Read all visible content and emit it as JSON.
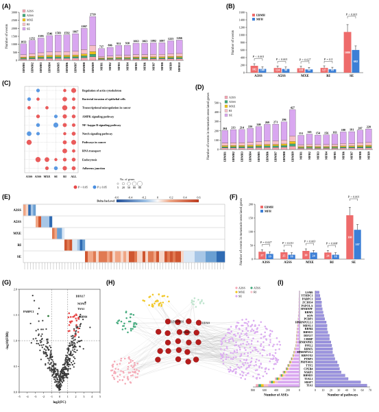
{
  "panels": {
    "a": "(A)",
    "b": "(B)",
    "c": "(C)",
    "d": "(D)",
    "e": "(E)",
    "f": "(F)",
    "g": "(G)",
    "h": "(H)",
    "i": "(I)"
  },
  "colors": {
    "a3ss": "#f4a6b3",
    "a5ss": "#3fa87a",
    "mxe": "#f0c419",
    "ri": "#f7bfc8",
    "se": "#d9a7f0",
    "ebmh": "#ee6b6b",
    "mfh": "#3c7fd6",
    "red": "#e84a4a",
    "blue": "#4a8fe0"
  },
  "legend5": [
    {
      "key": "A3SS",
      "color": "#f4a6b3"
    },
    {
      "key": "A5SS",
      "color": "#3fa87a"
    },
    {
      "key": "MXE",
      "color": "#f0c419"
    },
    {
      "key": "RI",
      "color": "#f7bfc8"
    },
    {
      "key": "SE",
      "color": "#d9a7f0"
    }
  ],
  "chart_a": {
    "type": "bar",
    "ylabel": "Number of events",
    "yticks": [
      "0",
      "500",
      "1000",
      "1500",
      "2000",
      "2500",
      "3000"
    ],
    "ymax": 3000,
    "categories": [
      "EBMH1",
      "EBMH2",
      "EBMH3",
      "EBMH4",
      "EBMH5",
      "EBMH6",
      "EBMH7",
      "EBMH8",
      "EBMH9",
      "MFH1",
      "MFH2",
      "MFH3",
      "MFH4",
      "MFH5",
      "MFH6",
      "MFH7",
      "MFH8",
      "MFH9",
      "MFH10"
    ],
    "totals": [
      1033,
      1252,
      1393,
      1546,
      1583,
      1592,
      1667,
      1997,
      2739,
      737,
      806,
      931,
      938,
      1063,
      1063,
      1092,
      1097,
      1223,
      1266
    ],
    "labels": [
      "1033",
      "1252",
      "1393",
      "1546",
      "1583",
      "1592",
      "1667",
      "1997",
      "2739",
      "737",
      "806",
      "931",
      "938",
      "1063",
      "1063",
      "1092",
      "1097",
      "1223",
      "1266"
    ]
  },
  "chart_b": {
    "type": "bar",
    "ylabel": "Number of events",
    "yticks": [
      "0",
      "200",
      "400",
      "600",
      "800",
      "1000",
      "1200",
      "1400",
      "1600"
    ],
    "ymax": 1600,
    "categories": [
      "A3SS",
      "A5SS",
      "MXE",
      "RI",
      "SE"
    ],
    "legend": [
      "EBMH",
      "MFH"
    ],
    "ebmh": [
      182,
      124,
      118,
      127,
      1080
    ],
    "mfh": [
      100,
      98,
      86,
      89,
      602
    ],
    "ebmh_labels": [
      "182",
      "124",
      "118",
      "127",
      "1080"
    ],
    "mfh_labels": [
      "100",
      "98",
      "86",
      "89",
      "602"
    ],
    "pvals": [
      "P < 0.001",
      "P < 0.001",
      "P = 0.027",
      "P = 0.5",
      "P < 0.001"
    ]
  },
  "chart_c": {
    "pathways": [
      "Regulation of actin cytoskeleton",
      "Bacterial invasion of epithelial cells",
      "Transcriptional misregulation in cancer",
      "AMPK signaling pathway",
      "NF−kappa B signaling pathway",
      "Notch signaling pathway",
      "Pathways in cancer",
      "RNA transport",
      "Endocytosis",
      "Adherens junction"
    ],
    "columns": [
      "A3SS",
      "A5SS",
      "MXE",
      "SE",
      "RI",
      "ALL"
    ],
    "legend_red": "P < 0.05",
    "legend_blue": "P ≥ 0.05",
    "size_title": "No. of genes",
    "size_values": [
      "5",
      "20",
      "50",
      "80",
      "80"
    ]
  },
  "chart_d": {
    "type": "bar",
    "ylabel": "Number of events in metastasis-associated genes",
    "yticks": [
      "0",
      "100",
      "200",
      "300",
      "400",
      "500"
    ],
    "ymax": 500,
    "categories": [
      "EBMH1",
      "EBMH2",
      "EBMH3",
      "EBMH4",
      "EBMH5",
      "EBMH6",
      "EBMH7",
      "EBMH8",
      "EBMH9",
      "MFH1",
      "MFH2",
      "MFH3",
      "MFH4",
      "MFH5",
      "MFH6",
      "MFH7",
      "MFH8",
      "MFH9"
    ],
    "totals": [
      204,
      213,
      214,
      226,
      246,
      269,
      271,
      296,
      427,
      151,
      165,
      154,
      156,
      163,
      188,
      191,
      207,
      220
    ],
    "labels": [
      "204",
      "213",
      "214",
      "226",
      "246",
      "269",
      "271",
      "296",
      "427",
      "151",
      "165",
      "154",
      "156",
      "163",
      "188",
      "191",
      "207",
      "220"
    ]
  },
  "chart_e": {
    "scale_title": "Delta Incl.evel",
    "scale_ticks": [
      "-0.6",
      "-0.4",
      "-0.2",
      "0",
      "0.2",
      "0.4",
      "0.6"
    ],
    "rows": [
      "A3SS",
      "A5SS",
      "MXE",
      "RI",
      "SE"
    ]
  },
  "chart_f": {
    "type": "bar",
    "ylabel": "Number of events in metastasis-associated genes",
    "yticks": [
      "0",
      "50",
      "100",
      "150",
      "200"
    ],
    "ymax": 200,
    "categories": [
      "A3SS",
      "A5SS",
      "MXE",
      "RI",
      "SE"
    ],
    "legend": [
      "EBMH",
      "MFH"
    ],
    "ebmh": [
      27,
      25,
      30,
      24,
      160
    ],
    "mfh": [
      19,
      16,
      24,
      16,
      107
    ],
    "ebmh_labels": [
      "27",
      "25",
      "30",
      "24",
      "160"
    ],
    "mfh_labels": [
      "19",
      "16",
      "24",
      "16",
      "107"
    ],
    "pvals": [
      "P = 0.027",
      "P = 0.011",
      "P = 0.063",
      "P = 0.008",
      "P < 0.001"
    ]
  },
  "chart_g": {
    "ylabel": "-log10(FDR)",
    "xlabel": "log2(FC)",
    "yticks": [
      "0.0",
      "0.5",
      "1.0",
      "1.5",
      "2.0"
    ],
    "xticks": [
      "-5",
      "-4",
      "-3",
      "-2",
      "-1",
      "0",
      "1",
      "2",
      "3",
      "4",
      "5"
    ],
    "labels": [
      "PABPC1",
      "DDX17",
      "NONO",
      "TSA1",
      "RBM4",
      "RBM8"
    ]
  },
  "chart_h": {
    "legend": [
      "A3SS",
      "A5SS",
      "MXE",
      "RI",
      "SE"
    ],
    "hub_labels": [
      "HNRNPM",
      "RBM4",
      "SRSF6"
    ]
  },
  "chart_i": {
    "genes": [
      "LSM6",
      "YTHDC1",
      "PABPC1",
      "ZC3H14",
      "PAPOLA",
      "HNRNPF",
      "RBM3",
      "SON",
      "PCBP1",
      "HNRNPULL1",
      "MBNL1",
      "RBM4",
      "RBM15",
      "DDX17",
      "CIRBP",
      "HNRNPH3",
      "PPIL2",
      "RBMX",
      "HNRNPUL2",
      "RBFOX2",
      "PTBP1",
      "PRPF40A",
      "TTF2",
      "CPEB4",
      "NSRP1",
      "RBM25",
      "TIAL1",
      "SRSF7",
      "TIA1"
    ],
    "ases": [
      10,
      12,
      14,
      15,
      16,
      18,
      20,
      25,
      30,
      35,
      40,
      48,
      52,
      58,
      60,
      65,
      70,
      90,
      105,
      120,
      150,
      180,
      210,
      240,
      290,
      340,
      420,
      520,
      750
    ],
    "pathways": [
      5,
      6,
      7,
      8,
      8,
      9,
      10,
      11,
      12,
      14,
      15,
      15,
      16,
      18,
      18,
      20,
      21,
      22,
      22,
      24,
      25,
      28,
      30,
      31,
      33,
      38,
      42,
      58,
      66
    ],
    "xlabel_left": "Number of ASEs",
    "xlabel_right": "Number of pathways",
    "xticks_left": [
      "800",
      "600",
      "400",
      "200",
      "0"
    ],
    "xticks_right": [
      "0",
      "10",
      "20",
      "30",
      "40",
      "50",
      "60",
      "70"
    ]
  }
}
